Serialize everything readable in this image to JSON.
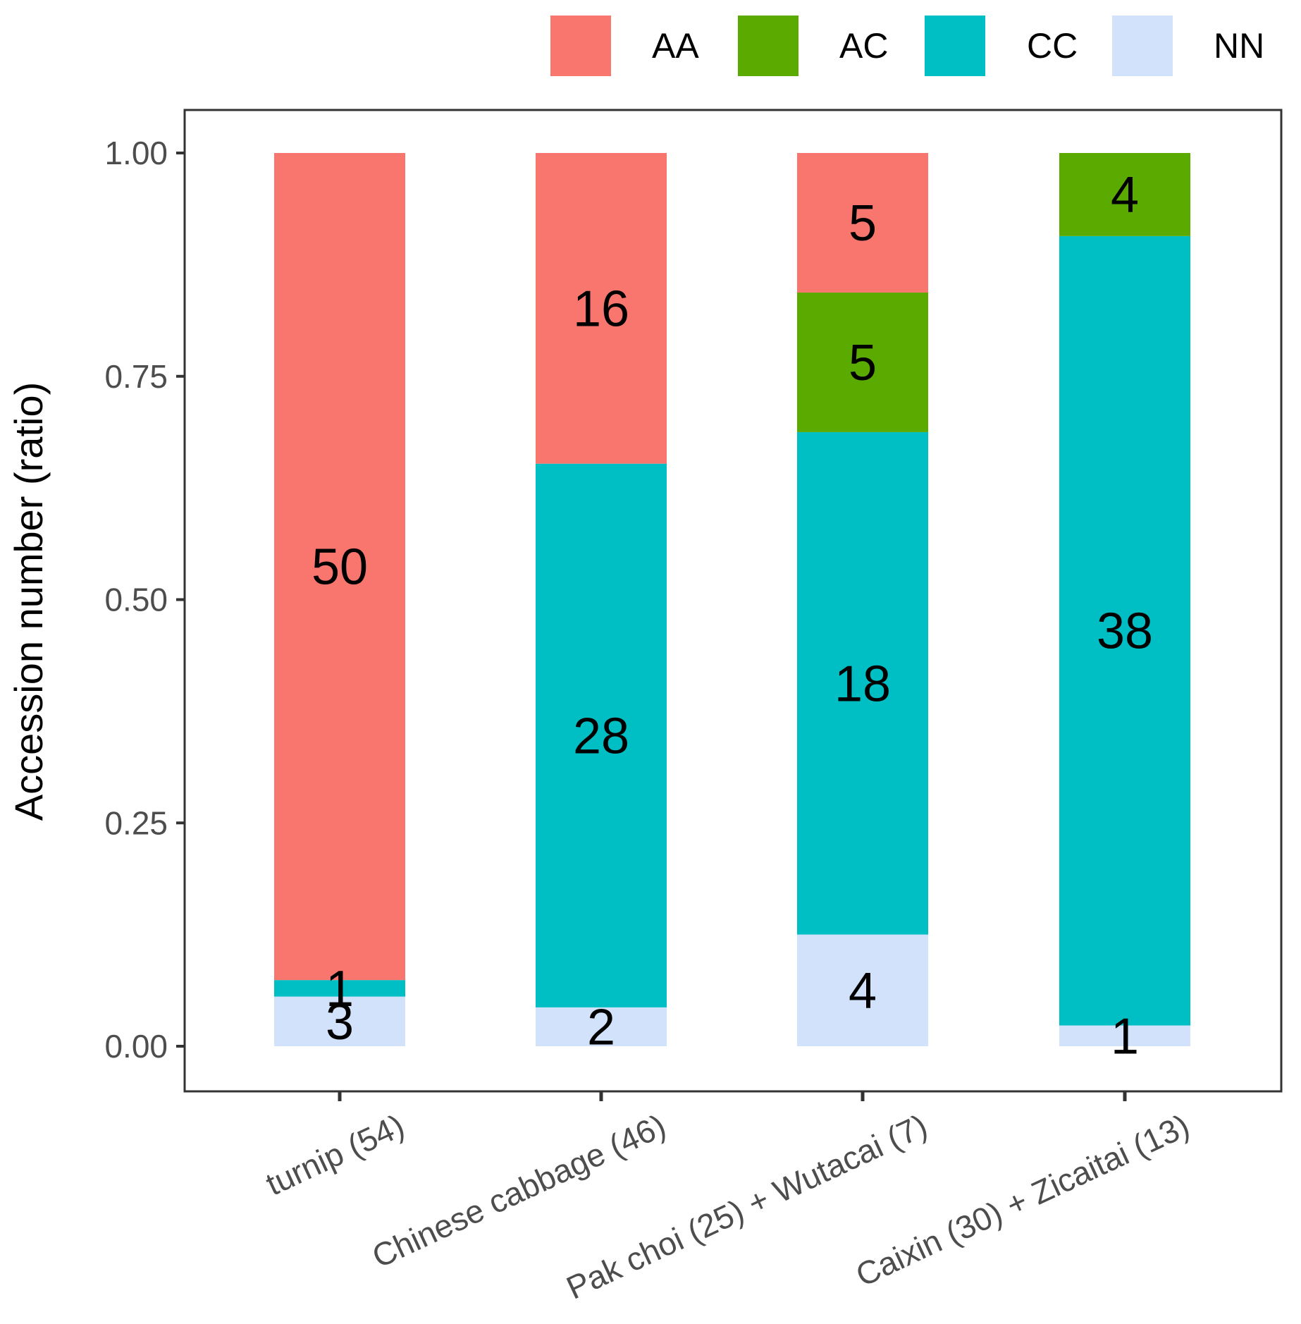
{
  "chart_data": {
    "type": "bar",
    "stacked": true,
    "normalized": true,
    "title": "",
    "xlabel": "",
    "ylabel": "Accession number (ratio)",
    "ylim": [
      0,
      1
    ],
    "yticks": [
      "0.00",
      "0.25",
      "0.50",
      "0.75",
      "1.00"
    ],
    "legend_position": "top-right",
    "categories": [
      "turnip (54)",
      "Chinese cabbage (46)",
      "Pak choi (25) + Wutacai (7)",
      "Caixin (30) + Zicaitai (13)"
    ],
    "stack_order_bottom_to_top": [
      "NN",
      "CC",
      "AC",
      "AA"
    ],
    "series": [
      {
        "name": "AA",
        "color": "#F8766D",
        "values": [
          50,
          16,
          5,
          0
        ]
      },
      {
        "name": "AC",
        "color": "#5BAA00",
        "values": [
          0,
          0,
          5,
          4
        ]
      },
      {
        "name": "CC",
        "color": "#00BFC4",
        "values": [
          1,
          28,
          18,
          38
        ]
      },
      {
        "name": "NN",
        "color": "#D3E2FB",
        "values": [
          3,
          2,
          4,
          1
        ]
      }
    ]
  }
}
